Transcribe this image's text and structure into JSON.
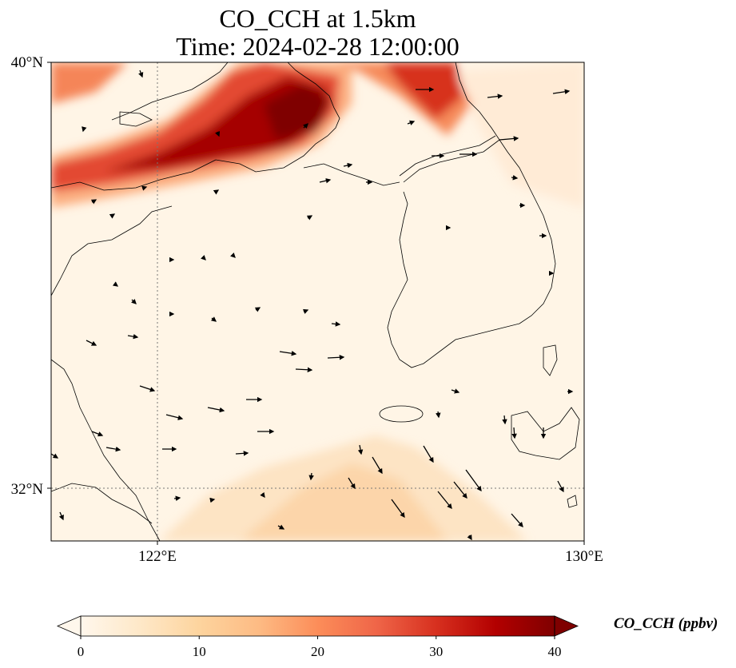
{
  "title": {
    "line1": "CO_CCH at 1.5km",
    "line2": "Time: 2024-02-28 12:00:00"
  },
  "map": {
    "lat_range": [
      31.0,
      40.0
    ],
    "lon_range": [
      120.0,
      130.0
    ],
    "lat_ticks": [
      {
        "value": 40,
        "label": "40°N"
      },
      {
        "value": 32,
        "label": "32°N"
      }
    ],
    "lon_ticks": [
      {
        "value": 122,
        "label": "122°E"
      },
      {
        "value": 130,
        "label": "130°E"
      }
    ],
    "gridlines": "dotted at 122°E and 32°N",
    "field": "CO_CCH",
    "overlay": "wind vectors",
    "plume_description_colors": {
      "low": "#fff5eb",
      "mid": "#fdae6b",
      "high": "#7f0000"
    }
  },
  "colorbar": {
    "title": "CO_CCH (ppbv)",
    "min": 0,
    "max": 40,
    "extend": "both",
    "ticks": [
      "0",
      "10",
      "20",
      "30",
      "40"
    ],
    "colormap": "OrRd",
    "stops": [
      "#fff7ec",
      "#fee8c8",
      "#fdd49e",
      "#fdbb84",
      "#fc8d59",
      "#ef6548",
      "#d7301f",
      "#b30000",
      "#7f0000"
    ]
  }
}
